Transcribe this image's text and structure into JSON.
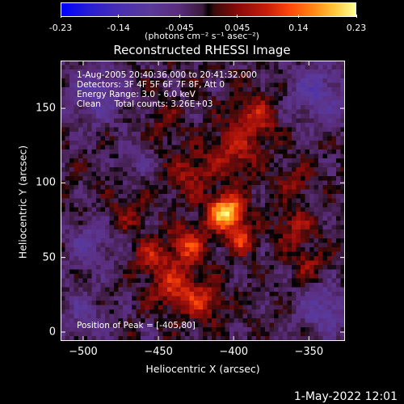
{
  "colorbar": {
    "ticks": [
      "-0.23",
      "-0.14",
      "-0.045",
      "0.045",
      "0.14",
      "0.23"
    ],
    "tick_values": [
      -0.23,
      -0.14,
      -0.045,
      0.045,
      0.14,
      0.23
    ],
    "range": [
      -0.23,
      0.23
    ],
    "units": "(photons cm⁻² s⁻¹ asec⁻²)"
  },
  "title": "Reconstructed RHESSI Image",
  "info": {
    "line1": "1-Aug-2005 20:40:36.000 to 20:41:32.000",
    "line2": "Detectors: 3F 4F 5F 6F 7F 8F, Att 0",
    "line3": "Energy Range: 3.0 - 6.0 keV",
    "line4": "Clean     Total counts: 3.26E+03",
    "peak": "Position of Peak = [-405,80]"
  },
  "chart_data": {
    "type": "heatmap",
    "title": "Reconstructed RHESSI Image",
    "xlabel": "Heliocentric X (arcsec)",
    "ylabel": "Heliocentric Y (arcsec)",
    "xlim": [
      -515,
      -326
    ],
    "ylim": [
      -6,
      182
    ],
    "xticks": [
      -500,
      -450,
      -400,
      -350
    ],
    "yticks": [
      0,
      50,
      100,
      150
    ],
    "xtick_labels": [
      "−500",
      "−450",
      "−400",
      "−350"
    ],
    "ytick_labels": [
      "0",
      "50",
      "100",
      "150"
    ],
    "peak": {
      "x": -405,
      "y": 80,
      "value": 0.23
    },
    "blobs": [
      {
        "x": -405,
        "y": 80,
        "amp": 0.23,
        "sigma": 8
      },
      {
        "x": -395,
        "y": 62,
        "amp": 0.12,
        "sigma": 6
      },
      {
        "x": -430,
        "y": 58,
        "amp": 0.11,
        "sigma": 9
      },
      {
        "x": -440,
        "y": 30,
        "amp": 0.1,
        "sigma": 10
      },
      {
        "x": -420,
        "y": 20,
        "amp": 0.09,
        "sigma": 9
      },
      {
        "x": -455,
        "y": 50,
        "amp": 0.08,
        "sigma": 8
      },
      {
        "x": -400,
        "y": 120,
        "amp": 0.08,
        "sigma": 12
      },
      {
        "x": -385,
        "y": 145,
        "amp": 0.09,
        "sigma": 10
      },
      {
        "x": -430,
        "y": 105,
        "amp": 0.07,
        "sigma": 10
      },
      {
        "x": -360,
        "y": 70,
        "amp": 0.07,
        "sigma": 9
      },
      {
        "x": -350,
        "y": 45,
        "amp": 0.06,
        "sigma": 8
      },
      {
        "x": -470,
        "y": 80,
        "amp": 0.05,
        "sigma": 9
      },
      {
        "x": -360,
        "y": 100,
        "amp": 0.05,
        "sigma": 8
      },
      {
        "x": -445,
        "y": 140,
        "amp": 0.04,
        "sigma": 8
      },
      {
        "x": -490,
        "y": 160,
        "amp": -0.07,
        "sigma": 14
      },
      {
        "x": -495,
        "y": 60,
        "amp": -0.06,
        "sigma": 12
      },
      {
        "x": -345,
        "y": 160,
        "amp": -0.08,
        "sigma": 14
      },
      {
        "x": -340,
        "y": 15,
        "amp": -0.08,
        "sigma": 12
      },
      {
        "x": -500,
        "y": 10,
        "amp": -0.05,
        "sigma": 12
      },
      {
        "x": -465,
        "y": 115,
        "amp": -0.04,
        "sigma": 8
      }
    ],
    "grid": false
  },
  "date": "1-May-2022 12:01"
}
